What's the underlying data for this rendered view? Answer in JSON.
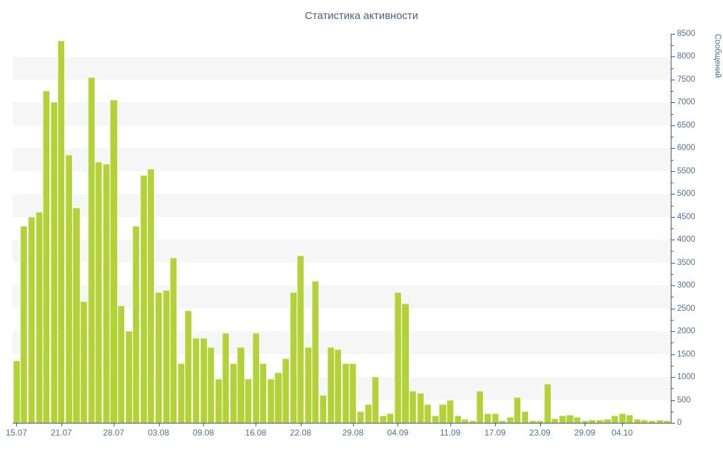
{
  "title": "Статистика активности",
  "chart_data": {
    "type": "bar",
    "title": "Статистика активности",
    "ylabel": "Сообщений",
    "xlabel": "",
    "ylim": [
      0,
      8500
    ],
    "y_tick_step": 500,
    "y_minor_tick_step": 250,
    "grid": "striped-bands",
    "legend": "none",
    "axis_side": "right",
    "values": [
      1350,
      4300,
      4500,
      4600,
      7250,
      7000,
      8350,
      5850,
      4700,
      2650,
      7550,
      5700,
      5650,
      7050,
      2550,
      2000,
      4300,
      5400,
      5550,
      2850,
      2900,
      3600,
      1300,
      2450,
      1850,
      1850,
      1650,
      950,
      1950,
      1300,
      1650,
      950,
      1950,
      1300,
      950,
      1100,
      1400,
      2850,
      3650,
      1650,
      3100,
      600,
      1650,
      1600,
      1300,
      1300,
      250,
      400,
      1000,
      150,
      200,
      2850,
      2600,
      700,
      650,
      400,
      150,
      400,
      500,
      150,
      75,
      40,
      700,
      200,
      200,
      50,
      125,
      550,
      250,
      40,
      50,
      850,
      100,
      150,
      175,
      125,
      50,
      60,
      60,
      75,
      150,
      200,
      175,
      75,
      60,
      50,
      60,
      50
    ],
    "x_tick_labels": [
      {
        "index": 0,
        "label": "15.07"
      },
      {
        "index": 6,
        "label": "21.07"
      },
      {
        "index": 13,
        "label": "28.07"
      },
      {
        "index": 19,
        "label": "03.08"
      },
      {
        "index": 25,
        "label": "09.08"
      },
      {
        "index": 32,
        "label": "16.08"
      },
      {
        "index": 38,
        "label": "22.08"
      },
      {
        "index": 45,
        "label": "29.08"
      },
      {
        "index": 51,
        "label": "04.09"
      },
      {
        "index": 58,
        "label": "11.09"
      },
      {
        "index": 64,
        "label": "17.09"
      },
      {
        "index": 70,
        "label": "23.09"
      },
      {
        "index": 76,
        "label": "29.09"
      },
      {
        "index": 81,
        "label": "04.10"
      }
    ],
    "y_tick_labels": [
      "0",
      "500",
      "1000",
      "1500",
      "2000",
      "2500",
      "3000",
      "3500",
      "4000",
      "4500",
      "5000",
      "5500",
      "6000",
      "6500",
      "7000",
      "7500",
      "8000",
      "8500"
    ],
    "colors": {
      "bar": "#b2d235",
      "bar_edge": "#c9e170",
      "axis_line": "#3a5795",
      "axis_text": "#4d6fa5",
      "title_text": "#44608d",
      "stripe": "#f6f6f6",
      "background": "#ffffff"
    }
  }
}
